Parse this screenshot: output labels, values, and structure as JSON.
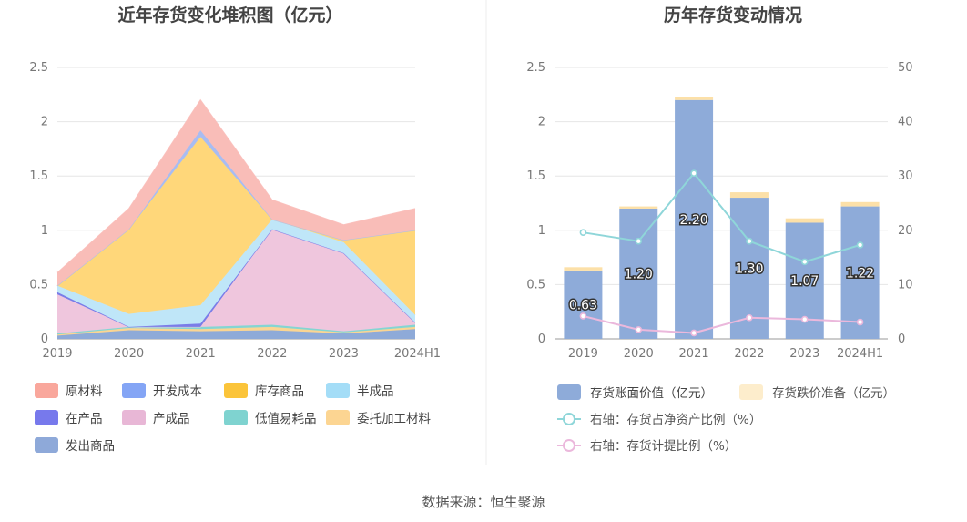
{
  "source_text": "数据来源：恒生聚源",
  "chart_data": [
    {
      "type": "area",
      "stacked": true,
      "title": "近年存货变化堆积图（亿元）",
      "categories": [
        "2019",
        "2020",
        "2021",
        "2022",
        "2023",
        "2024H1"
      ],
      "yticks": [
        "0",
        "0.5",
        "1",
        "1.5",
        "2",
        "2.5"
      ],
      "ylim": [
        0,
        2.5
      ],
      "grid": true,
      "legend_position": "bottom",
      "series": [
        {
          "name": "发出商品",
          "color": "#8eaad8",
          "values": [
            0.03,
            0.08,
            0.07,
            0.08,
            0.05,
            0.09
          ]
        },
        {
          "name": "委托加工材料",
          "color": "#fbd592",
          "values": [
            0.01,
            0.02,
            0.02,
            0.03,
            0.01,
            0.02
          ]
        },
        {
          "name": "低值易耗品",
          "color": "#84d5d3",
          "values": [
            0.01,
            0.01,
            0.02,
            0.02,
            0.01,
            0.02
          ]
        },
        {
          "name": "产成品",
          "color": "#efc6dd",
          "values": [
            0.36,
            0.0,
            0.0,
            0.88,
            0.72,
            0.02
          ]
        },
        {
          "name": "在产品",
          "color": "#7a7de8",
          "values": [
            0.02,
            0.0,
            0.03,
            0.0,
            0.0,
            0.0
          ]
        },
        {
          "name": "半成品",
          "color": "#bfe6f8",
          "values": [
            0.06,
            0.12,
            0.17,
            0.09,
            0.1,
            0.07
          ]
        },
        {
          "name": "库存商品",
          "color": "#ffd77a",
          "values": [
            0.0,
            0.78,
            1.55,
            0.0,
            0.02,
            0.78
          ]
        },
        {
          "name": "开发成本",
          "color": "#a8bcf2",
          "values": [
            0.0,
            0.0,
            0.06,
            0.0,
            0.0,
            0.0
          ]
        },
        {
          "name": "原材料",
          "color": "#f9bdb8",
          "values": [
            0.12,
            0.19,
            0.28,
            0.18,
            0.14,
            0.2
          ]
        }
      ],
      "legend": [
        {
          "name": "原材料",
          "color": "#f9a79c"
        },
        {
          "name": "开发成本",
          "color": "#84a5f5"
        },
        {
          "name": "库存商品",
          "color": "#fbc43a"
        },
        {
          "name": "半成品",
          "color": "#a4ddf7"
        },
        {
          "name": "在产品",
          "color": "#7779ec"
        },
        {
          "name": "产成品",
          "color": "#e8b7d6"
        },
        {
          "name": "低值易耗品",
          "color": "#7fd3d0"
        },
        {
          "name": "委托加工材料",
          "color": "#fcd592"
        },
        {
          "name": "发出商品",
          "color": "#8ea9d9"
        }
      ]
    },
    {
      "type": "bar",
      "title": "历年存货变动情况",
      "categories": [
        "2019",
        "2020",
        "2021",
        "2022",
        "2023",
        "2024H1"
      ],
      "yticks_left": [
        "0",
        "0.5",
        "1",
        "1.5",
        "2",
        "2.5"
      ],
      "yticks_right": [
        "0",
        "10",
        "20",
        "30",
        "40",
        "50"
      ],
      "ylim_left": [
        0,
        2.5
      ],
      "ylim_right": [
        0,
        50
      ],
      "grid": true,
      "legend_position": "bottom",
      "bar_series": [
        {
          "name": "存货账面价值（亿元）",
          "color": "#8eabd9",
          "values": [
            0.63,
            1.2,
            2.2,
            1.3,
            1.07,
            1.22
          ],
          "labels": [
            "0.63",
            "1.20",
            "2.20",
            "1.30",
            "1.07",
            "1.22"
          ]
        },
        {
          "name": "存货跌价准备（亿元）",
          "color": "#fce0a8",
          "legend_color": "#fdedcc",
          "values": [
            0.03,
            0.02,
            0.03,
            0.05,
            0.04,
            0.04
          ]
        }
      ],
      "line_series": [
        {
          "name": "右轴：存货占净资产比例（%）",
          "color": "#8fd6d9",
          "values": [
            19.6,
            18.0,
            30.5,
            18.0,
            14.2,
            17.3
          ]
        },
        {
          "name": "右轴：存货计提比例（%）",
          "color": "#ebb8dc",
          "values": [
            4.2,
            1.7,
            1.1,
            3.9,
            3.6,
            3.1
          ]
        }
      ]
    }
  ]
}
